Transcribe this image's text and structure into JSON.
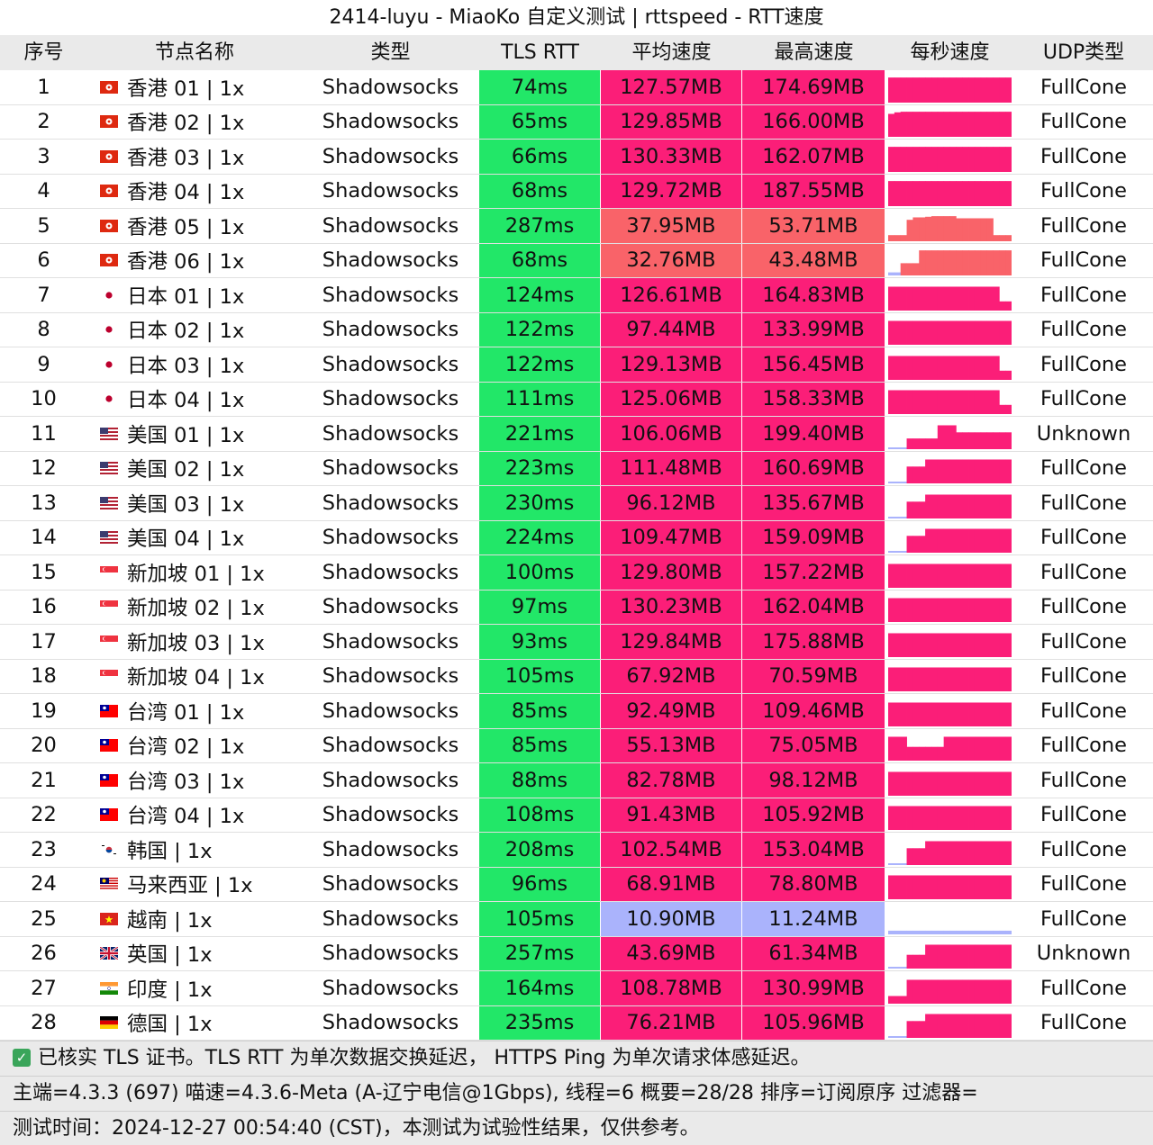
{
  "title": "2414-luyu - MiaoKo 自定义测试 | rttspeed - RTT速度",
  "watermark": "MiaoKo",
  "headers": [
    "序号",
    "节点名称",
    "类型",
    "TLS RTT",
    "平均速度",
    "最高速度",
    "每秒速度",
    "UDP类型"
  ],
  "colors": {
    "rtt_green": "#22e768",
    "speed_high": "#fb1e78",
    "speed_mid": "#f96369",
    "speed_low": "#aab3fc",
    "header_bg": "#eaeaea"
  },
  "rows": [
    {
      "idx": "1",
      "flag": "hk",
      "name": "香港 01 | 1x",
      "type": "Shadowsocks",
      "rtt": "74ms",
      "avg": "127.57MB",
      "max": "174.69MB",
      "udp": "FullCone",
      "spark": [
        0.82,
        0.82,
        0.82,
        0.82,
        0.82,
        0.82,
        0.82,
        0.82,
        0.82,
        0.82,
        0.82,
        0.82,
        0.82,
        0.82,
        0.82,
        0.82,
        0.82,
        0.82,
        0.82,
        0.82
      ]
    },
    {
      "idx": "2",
      "flag": "hk",
      "name": "香港 02 | 1x",
      "type": "Shadowsocks",
      "rtt": "65ms",
      "avg": "129.85MB",
      "max": "166.00MB",
      "udp": "FullCone",
      "spark": [
        0.75,
        0.8,
        0.82,
        0.82,
        0.82,
        0.82,
        0.82,
        0.82,
        0.82,
        0.82,
        0.82,
        0.82,
        0.82,
        0.82,
        0.82,
        0.82,
        0.82,
        0.82,
        0.82,
        0.82
      ]
    },
    {
      "idx": "3",
      "flag": "hk",
      "name": "香港 03 | 1x",
      "type": "Shadowsocks",
      "rtt": "66ms",
      "avg": "130.33MB",
      "max": "162.07MB",
      "udp": "FullCone",
      "spark": [
        0.82,
        0.82,
        0.82,
        0.82,
        0.82,
        0.82,
        0.82,
        0.82,
        0.82,
        0.82,
        0.82,
        0.82,
        0.82,
        0.82,
        0.82,
        0.82,
        0.82,
        0.82,
        0.82,
        0.82
      ]
    },
    {
      "idx": "4",
      "flag": "hk",
      "name": "香港 04 | 1x",
      "type": "Shadowsocks",
      "rtt": "68ms",
      "avg": "129.72MB",
      "max": "187.55MB",
      "udp": "FullCone",
      "spark": [
        0.82,
        0.82,
        0.82,
        0.82,
        0.82,
        0.82,
        0.82,
        0.82,
        0.82,
        0.82,
        0.82,
        0.82,
        0.82,
        0.82,
        0.82,
        0.82,
        0.82,
        0.82,
        0.82,
        0.82
      ]
    },
    {
      "idx": "5",
      "flag": "hk",
      "name": "香港 05 | 1x",
      "type": "Shadowsocks",
      "rtt": "287ms",
      "avg": "37.95MB",
      "max": "53.71MB",
      "udp": "FullCone",
      "spark": [
        0.2,
        0.2,
        0.2,
        0.7,
        0.78,
        0.78,
        0.8,
        0.82,
        0.82,
        0.82,
        0.82,
        0.75,
        0.75,
        0.75,
        0.75,
        0.75,
        0.75,
        0.2,
        0.2,
        0.2
      ]
    },
    {
      "idx": "6",
      "flag": "hk",
      "name": "香港 06 | 1x",
      "type": "Shadowsocks",
      "rtt": "68ms",
      "avg": "32.76MB",
      "max": "43.48MB",
      "udp": "FullCone",
      "spark": [
        0.1,
        0.1,
        0.4,
        0.4,
        0.4,
        0.82,
        0.82,
        0.82,
        0.82,
        0.82,
        0.82,
        0.82,
        0.82,
        0.82,
        0.82,
        0.82,
        0.82,
        0.82,
        0.82,
        0.82
      ]
    },
    {
      "idx": "7",
      "flag": "jp",
      "name": "日本 01 | 1x",
      "type": "Shadowsocks",
      "rtt": "124ms",
      "avg": "126.61MB",
      "max": "164.83MB",
      "udp": "FullCone",
      "spark": [
        0.78,
        0.78,
        0.78,
        0.78,
        0.78,
        0.78,
        0.78,
        0.78,
        0.78,
        0.78,
        0.78,
        0.78,
        0.78,
        0.78,
        0.78,
        0.78,
        0.78,
        0.78,
        0.3,
        0.3
      ]
    },
    {
      "idx": "8",
      "flag": "jp",
      "name": "日本 02 | 1x",
      "type": "Shadowsocks",
      "rtt": "122ms",
      "avg": "97.44MB",
      "max": "133.99MB",
      "udp": "FullCone",
      "spark": [
        0.78,
        0.78,
        0.78,
        0.78,
        0.78,
        0.78,
        0.78,
        0.78,
        0.78,
        0.78,
        0.78,
        0.78,
        0.78,
        0.78,
        0.78,
        0.78,
        0.78,
        0.78,
        0.78,
        0.78
      ]
    },
    {
      "idx": "9",
      "flag": "jp",
      "name": "日本 03 | 1x",
      "type": "Shadowsocks",
      "rtt": "122ms",
      "avg": "129.13MB",
      "max": "156.45MB",
      "udp": "FullCone",
      "spark": [
        0.78,
        0.78,
        0.78,
        0.78,
        0.78,
        0.78,
        0.78,
        0.78,
        0.78,
        0.78,
        0.78,
        0.78,
        0.78,
        0.78,
        0.78,
        0.78,
        0.78,
        0.78,
        0.3,
        0.3
      ]
    },
    {
      "idx": "10",
      "flag": "jp",
      "name": "日本 04 | 1x",
      "type": "Shadowsocks",
      "rtt": "111ms",
      "avg": "125.06MB",
      "max": "158.33MB",
      "udp": "FullCone",
      "spark": [
        0.78,
        0.78,
        0.78,
        0.78,
        0.78,
        0.78,
        0.78,
        0.78,
        0.78,
        0.78,
        0.78,
        0.78,
        0.78,
        0.78,
        0.78,
        0.78,
        0.78,
        0.78,
        0.3,
        0.3
      ]
    },
    {
      "idx": "11",
      "flag": "us",
      "name": "美国 01 | 1x",
      "type": "Shadowsocks",
      "rtt": "221ms",
      "avg": "106.06MB",
      "max": "199.40MB",
      "udp": "Unknown",
      "spark": [
        0.05,
        0.05,
        0.05,
        0.35,
        0.35,
        0.35,
        0.35,
        0.35,
        0.78,
        0.78,
        0.78,
        0.55,
        0.55,
        0.55,
        0.55,
        0.55,
        0.55,
        0.55,
        0.55,
        0.55
      ]
    },
    {
      "idx": "12",
      "flag": "us",
      "name": "美国 02 | 1x",
      "type": "Shadowsocks",
      "rtt": "223ms",
      "avg": "111.48MB",
      "max": "160.69MB",
      "udp": "FullCone",
      "spark": [
        0.05,
        0.05,
        0.05,
        0.55,
        0.55,
        0.55,
        0.78,
        0.78,
        0.78,
        0.78,
        0.78,
        0.78,
        0.78,
        0.78,
        0.78,
        0.78,
        0.78,
        0.78,
        0.78,
        0.78
      ]
    },
    {
      "idx": "13",
      "flag": "us",
      "name": "美国 03 | 1x",
      "type": "Shadowsocks",
      "rtt": "230ms",
      "avg": "96.12MB",
      "max": "135.67MB",
      "udp": "FullCone",
      "spark": [
        0.05,
        0.05,
        0.05,
        0.55,
        0.55,
        0.55,
        0.78,
        0.78,
        0.78,
        0.78,
        0.78,
        0.78,
        0.78,
        0.78,
        0.78,
        0.78,
        0.78,
        0.78,
        0.78,
        0.78
      ]
    },
    {
      "idx": "14",
      "flag": "us",
      "name": "美国 04 | 1x",
      "type": "Shadowsocks",
      "rtt": "224ms",
      "avg": "109.47MB",
      "max": "159.09MB",
      "udp": "FullCone",
      "spark": [
        0.05,
        0.05,
        0.05,
        0.55,
        0.55,
        0.55,
        0.78,
        0.78,
        0.78,
        0.78,
        0.78,
        0.78,
        0.78,
        0.78,
        0.78,
        0.78,
        0.78,
        0.78,
        0.78,
        0.78
      ]
    },
    {
      "idx": "15",
      "flag": "sg",
      "name": "新加坡 01 | 1x",
      "type": "Shadowsocks",
      "rtt": "100ms",
      "avg": "129.80MB",
      "max": "157.22MB",
      "udp": "FullCone",
      "spark": [
        0.78,
        0.78,
        0.78,
        0.78,
        0.78,
        0.78,
        0.78,
        0.78,
        0.78,
        0.78,
        0.78,
        0.78,
        0.78,
        0.78,
        0.78,
        0.78,
        0.78,
        0.78,
        0.78,
        0.78
      ]
    },
    {
      "idx": "16",
      "flag": "sg",
      "name": "新加坡 02 | 1x",
      "type": "Shadowsocks",
      "rtt": "97ms",
      "avg": "130.23MB",
      "max": "162.04MB",
      "udp": "FullCone",
      "spark": [
        0.78,
        0.78,
        0.78,
        0.78,
        0.78,
        0.78,
        0.78,
        0.78,
        0.78,
        0.78,
        0.78,
        0.78,
        0.78,
        0.78,
        0.78,
        0.78,
        0.78,
        0.78,
        0.78,
        0.78
      ]
    },
    {
      "idx": "17",
      "flag": "sg",
      "name": "新加坡 03 | 1x",
      "type": "Shadowsocks",
      "rtt": "93ms",
      "avg": "129.84MB",
      "max": "175.88MB",
      "udp": "FullCone",
      "spark": [
        0.78,
        0.78,
        0.78,
        0.78,
        0.78,
        0.78,
        0.78,
        0.78,
        0.78,
        0.78,
        0.78,
        0.78,
        0.78,
        0.78,
        0.78,
        0.78,
        0.78,
        0.78,
        0.78,
        0.78
      ]
    },
    {
      "idx": "18",
      "flag": "sg",
      "name": "新加坡 04 | 1x",
      "type": "Shadowsocks",
      "rtt": "105ms",
      "avg": "67.92MB",
      "max": "70.59MB",
      "udp": "FullCone",
      "spark": [
        0.78,
        0.78,
        0.78,
        0.78,
        0.78,
        0.78,
        0.78,
        0.78,
        0.78,
        0.78,
        0.78,
        0.78,
        0.78,
        0.78,
        0.78,
        0.78,
        0.78,
        0.78,
        0.78,
        0.78
      ]
    },
    {
      "idx": "19",
      "flag": "tw",
      "name": "台湾 01 | 1x",
      "type": "Shadowsocks",
      "rtt": "85ms",
      "avg": "92.49MB",
      "max": "109.46MB",
      "udp": "FullCone",
      "spark": [
        0.78,
        0.78,
        0.78,
        0.78,
        0.78,
        0.78,
        0.78,
        0.78,
        0.78,
        0.78,
        0.78,
        0.78,
        0.78,
        0.78,
        0.78,
        0.78,
        0.78,
        0.78,
        0.78,
        0.78
      ]
    },
    {
      "idx": "20",
      "flag": "tw",
      "name": "台湾 02 | 1x",
      "type": "Shadowsocks",
      "rtt": "85ms",
      "avg": "55.13MB",
      "max": "75.05MB",
      "udp": "FullCone",
      "spark": [
        0.78,
        0.78,
        0.78,
        0.45,
        0.45,
        0.45,
        0.45,
        0.45,
        0.45,
        0.78,
        0.78,
        0.78,
        0.78,
        0.78,
        0.78,
        0.78,
        0.78,
        0.78,
        0.78,
        0.78
      ]
    },
    {
      "idx": "21",
      "flag": "tw",
      "name": "台湾 03 | 1x",
      "type": "Shadowsocks",
      "rtt": "88ms",
      "avg": "82.78MB",
      "max": "98.12MB",
      "udp": "FullCone",
      "spark": [
        0.78,
        0.78,
        0.78,
        0.78,
        0.78,
        0.78,
        0.78,
        0.78,
        0.78,
        0.78,
        0.78,
        0.78,
        0.78,
        0.78,
        0.78,
        0.78,
        0.78,
        0.78,
        0.78,
        0.78
      ]
    },
    {
      "idx": "22",
      "flag": "tw",
      "name": "台湾 04 | 1x",
      "type": "Shadowsocks",
      "rtt": "108ms",
      "avg": "91.43MB",
      "max": "105.92MB",
      "udp": "FullCone",
      "spark": [
        0.78,
        0.78,
        0.78,
        0.78,
        0.78,
        0.78,
        0.78,
        0.78,
        0.78,
        0.78,
        0.78,
        0.78,
        0.78,
        0.78,
        0.78,
        0.78,
        0.78,
        0.78,
        0.78,
        0.78
      ]
    },
    {
      "idx": "23",
      "flag": "kr",
      "name": "韩国 | 1x",
      "type": "Shadowsocks",
      "rtt": "208ms",
      "avg": "102.54MB",
      "max": "153.04MB",
      "udp": "FullCone",
      "spark": [
        0.05,
        0.05,
        0.05,
        0.55,
        0.55,
        0.55,
        0.78,
        0.78,
        0.78,
        0.78,
        0.78,
        0.78,
        0.78,
        0.78,
        0.78,
        0.78,
        0.78,
        0.78,
        0.78,
        0.78
      ]
    },
    {
      "idx": "24",
      "flag": "my",
      "name": "马来西亚 | 1x",
      "type": "Shadowsocks",
      "rtt": "96ms",
      "avg": "68.91MB",
      "max": "78.80MB",
      "udp": "FullCone",
      "spark": [
        0.78,
        0.78,
        0.78,
        0.78,
        0.78,
        0.78,
        0.78,
        0.78,
        0.78,
        0.78,
        0.78,
        0.78,
        0.78,
        0.78,
        0.78,
        0.78,
        0.78,
        0.78,
        0.78,
        0.78
      ]
    },
    {
      "idx": "25",
      "flag": "vn",
      "name": "越南 | 1x",
      "type": "Shadowsocks",
      "rtt": "105ms",
      "avg": "10.90MB",
      "max": "11.24MB",
      "udp": "FullCone",
      "spark": [
        0.12,
        0.12,
        0.12,
        0.12,
        0.12,
        0.12,
        0.12,
        0.12,
        0.12,
        0.12,
        0.12,
        0.12,
        0.12,
        0.12,
        0.12,
        0.12,
        0.12,
        0.12,
        0.12,
        0.12
      ]
    },
    {
      "idx": "26",
      "flag": "uk",
      "name": "英国 | 1x",
      "type": "Shadowsocks",
      "rtt": "257ms",
      "avg": "43.69MB",
      "max": "61.34MB",
      "udp": "Unknown",
      "spark": [
        0.05,
        0.05,
        0.05,
        0.45,
        0.45,
        0.45,
        0.78,
        0.78,
        0.78,
        0.78,
        0.78,
        0.78,
        0.78,
        0.78,
        0.78,
        0.78,
        0.78,
        0.78,
        0.78,
        0.78
      ]
    },
    {
      "idx": "27",
      "flag": "in",
      "name": "印度 | 1x",
      "type": "Shadowsocks",
      "rtt": "164ms",
      "avg": "108.78MB",
      "max": "130.99MB",
      "udp": "FullCone",
      "spark": [
        0.25,
        0.25,
        0.25,
        0.78,
        0.78,
        0.78,
        0.78,
        0.78,
        0.78,
        0.78,
        0.78,
        0.78,
        0.78,
        0.78,
        0.78,
        0.78,
        0.78,
        0.78,
        0.78,
        0.78
      ]
    },
    {
      "idx": "28",
      "flag": "de",
      "name": "德国 | 1x",
      "type": "Shadowsocks",
      "rtt": "235ms",
      "avg": "76.21MB",
      "max": "105.96MB",
      "udp": "FullCone",
      "spark": [
        0.05,
        0.05,
        0.05,
        0.55,
        0.55,
        0.55,
        0.78,
        0.78,
        0.78,
        0.78,
        0.78,
        0.78,
        0.78,
        0.78,
        0.78,
        0.78,
        0.78,
        0.78,
        0.78,
        0.78
      ]
    }
  ],
  "footer": {
    "line1": "已核实 TLS 证书。TLS RTT 为单次数据交换延迟， HTTPS Ping 为单次请求体感延迟。",
    "line2": "主端=4.3.3 (697) 喵速=4.3.6-Meta (A-辽宁电信@1Gbps), 线程=6 概要=28/28 排序=订阅原序 过滤器=",
    "line3": "测试时间：2024-12-27 00:54:40 (CST)，本测试为试验性结果，仅供参考。"
  }
}
